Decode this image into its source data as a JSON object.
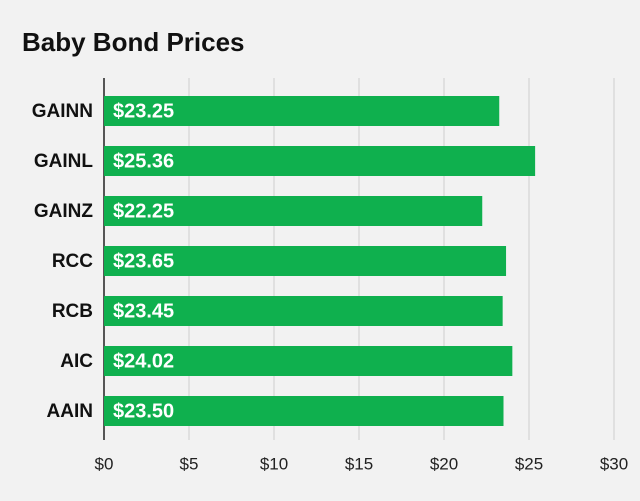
{
  "chart_data": {
    "type": "bar",
    "orientation": "horizontal",
    "title": "Baby Bond Prices",
    "categories": [
      "GAINN",
      "GAINL",
      "GAINZ",
      "RCC",
      "RCB",
      "AIC",
      "AAIN"
    ],
    "values": [
      23.25,
      25.36,
      22.25,
      23.65,
      23.45,
      24.02,
      23.5
    ],
    "value_labels": [
      "$23.25",
      "$25.36",
      "$22.25",
      "$23.65",
      "$23.45",
      "$24.02",
      "$23.50"
    ],
    "color": "#0fb04e",
    "xlim": [
      0,
      30
    ],
    "xticks": [
      {
        "value": 0,
        "label": "$0"
      },
      {
        "value": 5,
        "label": "$5"
      },
      {
        "value": 10,
        "label": "$10"
      },
      {
        "value": 15,
        "label": "$15"
      },
      {
        "value": 20,
        "label": "$20"
      },
      {
        "value": 25,
        "label": "$25"
      },
      {
        "value": 30,
        "label": "$30"
      }
    ],
    "grid": true
  }
}
